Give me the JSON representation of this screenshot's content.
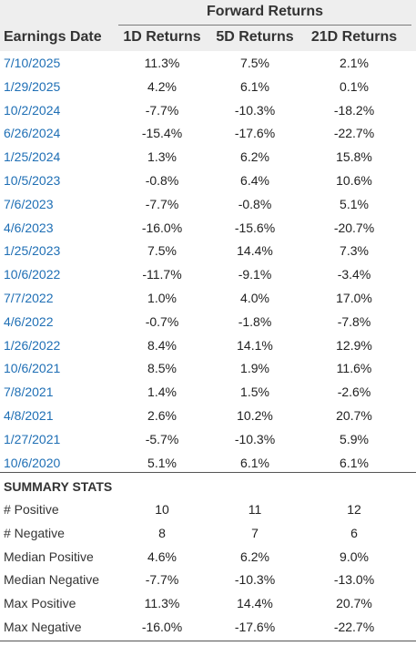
{
  "header": {
    "group_title": "Forward Returns",
    "col0": "Earnings Date",
    "col1": "1D Returns",
    "col2": "5D Returns",
    "col3": "21D Returns"
  },
  "rows": [
    {
      "date": "7/10/2025",
      "d1": "11.3%",
      "d5": "7.5%",
      "d21": "2.1%"
    },
    {
      "date": "1/29/2025",
      "d1": "4.2%",
      "d5": "6.1%",
      "d21": "0.1%"
    },
    {
      "date": "10/2/2024",
      "d1": "-7.7%",
      "d5": "-10.3%",
      "d21": "-18.2%"
    },
    {
      "date": "6/26/2024",
      "d1": "-15.4%",
      "d5": "-17.6%",
      "d21": "-22.7%"
    },
    {
      "date": "1/25/2024",
      "d1": "1.3%",
      "d5": "6.2%",
      "d21": "15.8%"
    },
    {
      "date": "10/5/2023",
      "d1": "-0.8%",
      "d5": "6.4%",
      "d21": "10.6%"
    },
    {
      "date": "7/6/2023",
      "d1": "-7.7%",
      "d5": "-0.8%",
      "d21": "5.1%"
    },
    {
      "date": "4/6/2023",
      "d1": "-16.0%",
      "d5": "-15.6%",
      "d21": "-20.7%"
    },
    {
      "date": "1/25/2023",
      "d1": "7.5%",
      "d5": "14.4%",
      "d21": "7.3%"
    },
    {
      "date": "10/6/2022",
      "d1": "-11.7%",
      "d5": "-9.1%",
      "d21": "-3.4%"
    },
    {
      "date": "7/7/2022",
      "d1": "1.0%",
      "d5": "4.0%",
      "d21": "17.0%"
    },
    {
      "date": "4/6/2022",
      "d1": "-0.7%",
      "d5": "-1.8%",
      "d21": "-7.8%"
    },
    {
      "date": "1/26/2022",
      "d1": "8.4%",
      "d5": "14.1%",
      "d21": "12.9%"
    },
    {
      "date": "10/6/2021",
      "d1": "8.5%",
      "d5": "1.9%",
      "d21": "11.6%"
    },
    {
      "date": "7/8/2021",
      "d1": "1.4%",
      "d5": "1.5%",
      "d21": "-2.6%"
    },
    {
      "date": "4/8/2021",
      "d1": "2.6%",
      "d5": "10.2%",
      "d21": "20.7%"
    },
    {
      "date": "1/27/2021",
      "d1": "-5.7%",
      "d5": "-10.3%",
      "d21": "5.9%"
    },
    {
      "date": "10/6/2020",
      "d1": "5.1%",
      "d5": "6.1%",
      "d21": "6.1%"
    }
  ],
  "summary": {
    "title": "SUMMARY STATS",
    "rows": [
      {
        "label": "# Positive",
        "d1": "10",
        "d5": "11",
        "d21": "12"
      },
      {
        "label": "# Negative",
        "d1": "8",
        "d5": "7",
        "d21": "6"
      },
      {
        "label": "Median Positive",
        "d1": "4.6%",
        "d5": "6.2%",
        "d21": "9.0%"
      },
      {
        "label": "Median Negative",
        "d1": "-7.7%",
        "d5": "-10.3%",
        "d21": "-13.0%"
      },
      {
        "label": "Max Positive",
        "d1": "11.3%",
        "d5": "14.4%",
        "d21": "20.7%"
      },
      {
        "label": "Max Negative",
        "d1": "-16.0%",
        "d5": "-17.6%",
        "d21": "-22.7%"
      }
    ]
  },
  "colors": {
    "date_link": "#1f6fb5",
    "header_band": "#eeeeee"
  }
}
